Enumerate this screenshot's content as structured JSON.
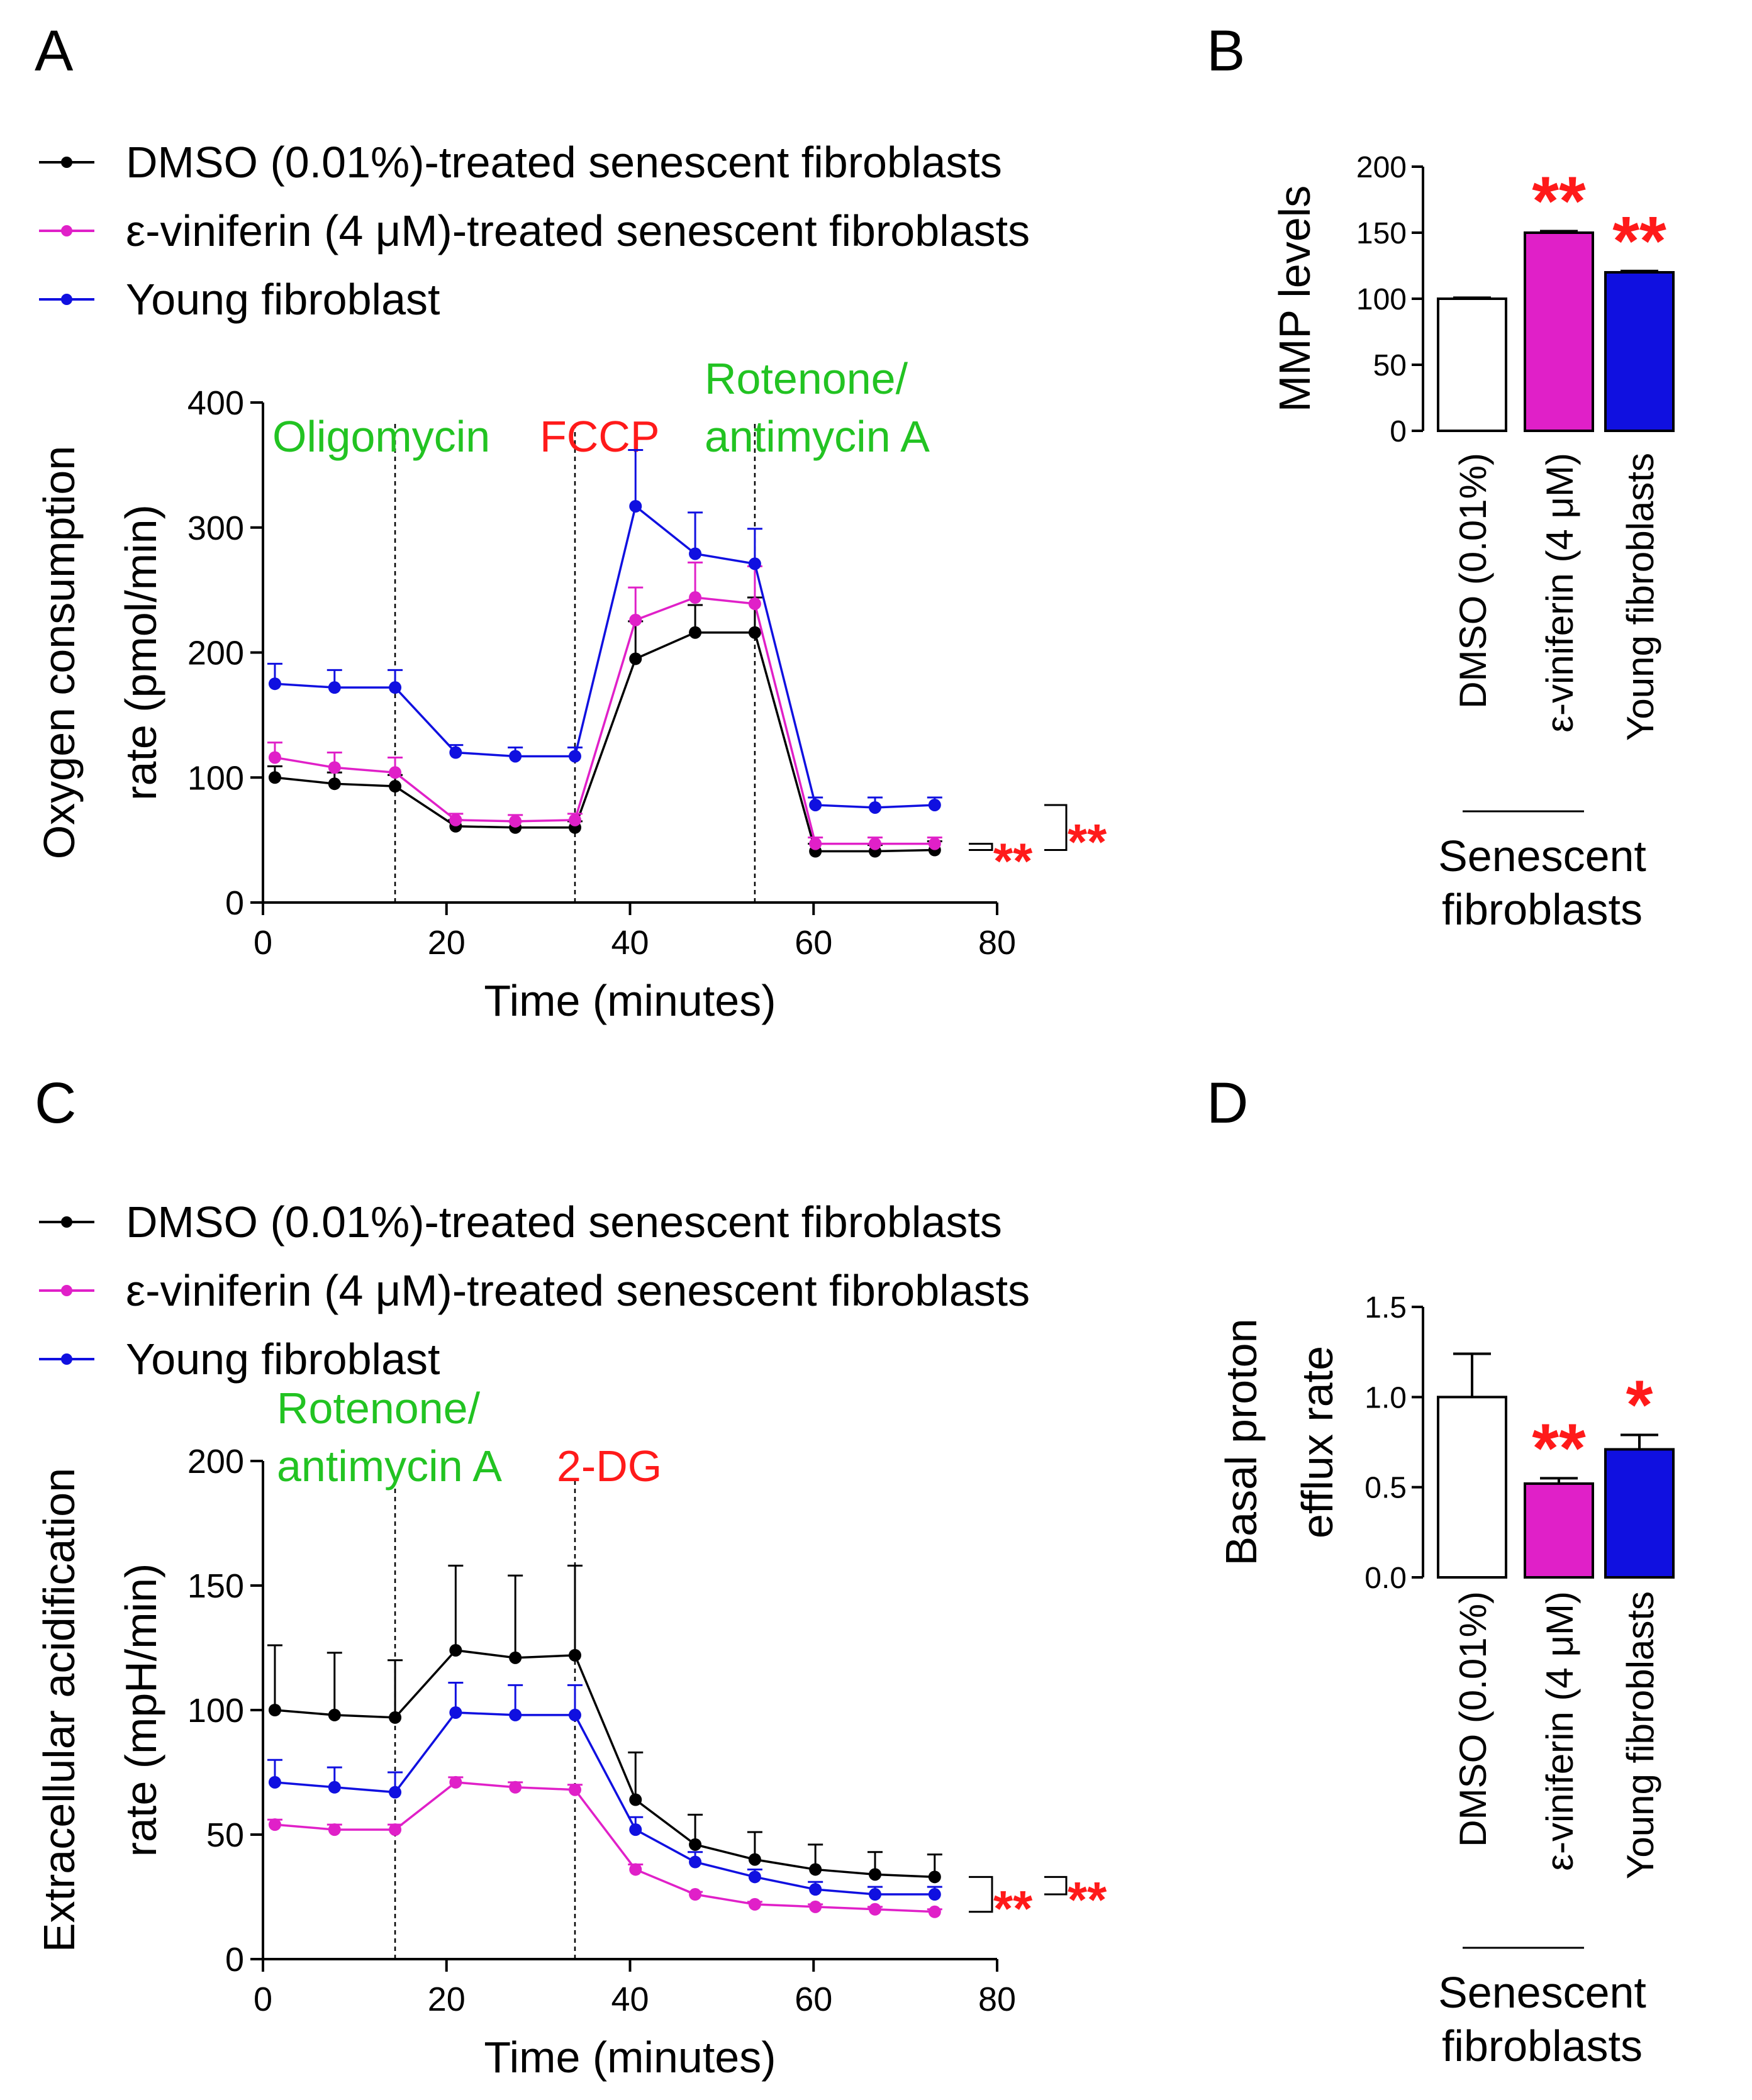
{
  "panels": {
    "A": "A",
    "B": "B",
    "C": "C",
    "D": "D"
  },
  "series_colors": {
    "DMSO": "#000000",
    "viniferin": "#e020c8",
    "young": "#1010e0"
  },
  "annotation_colors": {
    "green": "#22c322",
    "red": "#ff1a1a"
  },
  "chart_data": [
    {
      "panel": "A",
      "type": "line",
      "xlabel": "Time (minutes)",
      "ylabel_lines": [
        "Oxygen consumption",
        "rate (pmol/min)"
      ],
      "xlim": [
        0,
        80
      ],
      "ylim": [
        0,
        400
      ],
      "xticks": [
        "0",
        "20",
        "40",
        "60",
        "80"
      ],
      "yticks": [
        "0",
        "100",
        "200",
        "300",
        "400"
      ],
      "x": [
        1.3,
        7.8,
        14.4,
        21.0,
        27.5,
        34.0,
        40.6,
        47.1,
        53.6,
        60.2,
        66.7,
        73.2
      ],
      "series": [
        {
          "name": "DMSO (0.01%)-treated senescent fibroblasts",
          "color_key": "DMSO",
          "values": [
            100,
            95,
            93,
            61,
            60,
            60,
            195,
            216,
            216,
            41,
            41,
            42
          ],
          "errors": [
            9,
            9,
            9,
            5,
            5,
            5,
            30,
            22,
            28,
            6,
            5,
            7
          ]
        },
        {
          "name": "ε-viniferin (4 μM)-treated senescent fibroblasts",
          "color_key": "viniferin",
          "values": [
            116,
            108,
            104,
            66,
            65,
            66,
            226,
            244,
            239,
            47,
            47,
            47
          ],
          "errors": [
            12,
            12,
            12,
            5,
            5,
            5,
            26,
            28,
            30,
            5,
            5,
            5
          ]
        },
        {
          "name": "Young fibroblast",
          "color_key": "young",
          "values": [
            175,
            172,
            172,
            120,
            117,
            117,
            317,
            279,
            271,
            78,
            76,
            78
          ],
          "errors": [
            16,
            14,
            14,
            6,
            7,
            7,
            45,
            33,
            28,
            6,
            8,
            6
          ]
        }
      ],
      "injections": [
        {
          "x": 14.4,
          "lines": [
            "Oligomycin"
          ],
          "color": "green"
        },
        {
          "x": 34.0,
          "lines": [
            "FCCP"
          ],
          "color": "red"
        },
        {
          "x": 53.6,
          "lines": [
            "Rotenone/",
            "antimycin A"
          ],
          "color": "green"
        }
      ],
      "significance": [
        "**",
        "**"
      ]
    },
    {
      "panel": "B",
      "type": "bar",
      "ylabel": "MMP levels",
      "ylim": [
        0,
        200
      ],
      "yticks": [
        "0",
        "50",
        "100",
        "150",
        "200"
      ],
      "categories": [
        "DMSO (0.01%)",
        "ε-viniferin (4 μM)",
        "Young fibroblasts"
      ],
      "values": [
        100,
        150,
        120
      ],
      "errors": [
        0.8,
        1.2,
        1.0
      ],
      "bar_colors": [
        "#ffffff",
        "#e020c8",
        "#1010e0"
      ],
      "significance": [
        "",
        "**",
        "**"
      ],
      "group_label_lines": [
        "Senescent",
        "fibroblasts"
      ]
    },
    {
      "panel": "C",
      "type": "line",
      "xlabel": "Time (minutes)",
      "ylabel_lines": [
        "Extracellular acidification",
        "rate (mpH/min)"
      ],
      "xlim": [
        0,
        80
      ],
      "ylim": [
        0,
        200
      ],
      "xticks": [
        "0",
        "20",
        "40",
        "60",
        "80"
      ],
      "yticks": [
        "0",
        "50",
        "100",
        "150",
        "200"
      ],
      "x": [
        1.3,
        7.8,
        14.4,
        21.0,
        27.5,
        34.0,
        40.6,
        47.1,
        53.6,
        60.2,
        66.7,
        73.2
      ],
      "series": [
        {
          "name": "DMSO (0.01%)-treated senescent fibroblasts",
          "color_key": "DMSO",
          "values": [
            100,
            98,
            97,
            124,
            121,
            122,
            64,
            46,
            40,
            36,
            34,
            33
          ],
          "errors": [
            26,
            25,
            23,
            34,
            33,
            36,
            19,
            12,
            11,
            10,
            9,
            9
          ]
        },
        {
          "name": "ε-viniferin (4 μM)-treated senescent fibroblasts",
          "color_key": "viniferin",
          "values": [
            54,
            52,
            52,
            71,
            69,
            68,
            36,
            26,
            22,
            21,
            20,
            19
          ],
          "errors": [
            2,
            2,
            2,
            2,
            2,
            2,
            2,
            1,
            1,
            1,
            1,
            1
          ]
        },
        {
          "name": "Young fibroblast",
          "color_key": "young",
          "values": [
            71,
            69,
            67,
            99,
            98,
            98,
            52,
            39,
            33,
            28,
            26,
            26
          ],
          "errors": [
            9,
            8,
            8,
            12,
            12,
            12,
            5,
            4,
            3,
            3,
            3,
            3
          ]
        }
      ],
      "injections": [
        {
          "x": 14.4,
          "lines": [
            "Rotenone/",
            "antimycin A"
          ],
          "color": "green"
        },
        {
          "x": 34.0,
          "lines": [
            "2-DG"
          ],
          "color": "red"
        }
      ],
      "significance": [
        "**",
        "**"
      ]
    },
    {
      "panel": "D",
      "type": "bar",
      "ylabel_lines": [
        "Basal proton",
        "efflux rate"
      ],
      "ylim": [
        0,
        1.5
      ],
      "yticks": [
        "0.0",
        "0.5",
        "1.0",
        "1.5"
      ],
      "categories": [
        "DMSO (0.01%)",
        "ε-viniferin (4 μM)",
        "Young fibroblasts"
      ],
      "values": [
        1.0,
        0.52,
        0.71
      ],
      "errors": [
        0.24,
        0.03,
        0.08
      ],
      "bar_colors": [
        "#ffffff",
        "#e020c8",
        "#1010e0"
      ],
      "significance": [
        "",
        "**",
        "*"
      ],
      "group_label_lines": [
        "Senescent",
        "fibroblasts"
      ]
    }
  ]
}
